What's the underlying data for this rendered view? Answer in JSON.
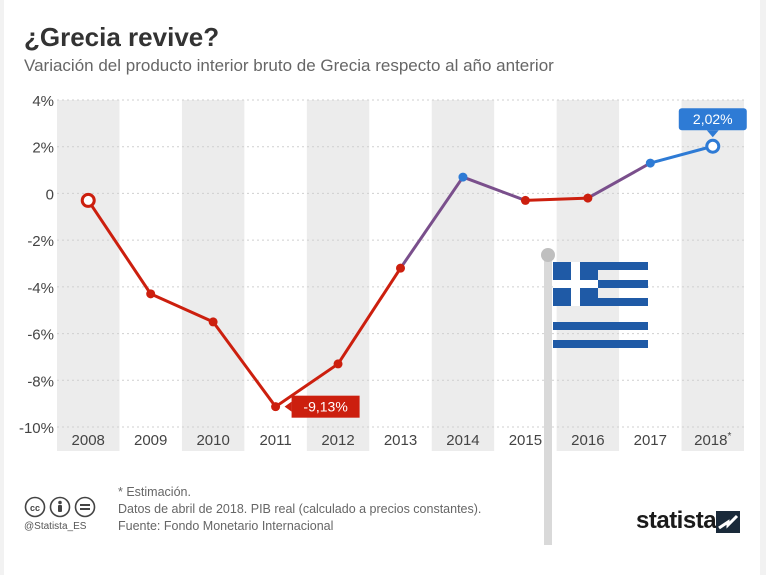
{
  "title": "¿Grecia revive?",
  "subtitle": "Variación del producto interior bruto de Grecia respecto al año anterior",
  "chart_data": {
    "type": "line",
    "title": "¿Grecia revive?",
    "subtitle": "Variación del producto interior bruto de Grecia respecto al año anterior",
    "xlabel": "",
    "ylabel": "",
    "categories": [
      "2008",
      "2009",
      "2010",
      "2011",
      "2012",
      "2013",
      "2014",
      "2015",
      "2016",
      "2017",
      "2018*"
    ],
    "values": [
      -0.3,
      -4.3,
      -5.5,
      -9.13,
      -7.3,
      -3.2,
      0.7,
      -0.3,
      -0.2,
      1.3,
      2.02
    ],
    "ylim": [
      -10,
      4
    ],
    "yticks": [
      4,
      2,
      0,
      -2,
      -4,
      -6,
      -8,
      -10
    ],
    "ytick_labels": [
      "4%",
      "2%",
      "0",
      "-2%",
      "-4%",
      "-6%",
      "-8%",
      "-10%"
    ],
    "grid": "alternating vertical bands",
    "colors": {
      "negative": "#cc1f0e",
      "positive": "#2e7bd5",
      "band": "#ececec"
    },
    "annotations": [
      {
        "category": "2011",
        "text": "-9,13%",
        "color": "#cc1f0e"
      },
      {
        "category": "2018*",
        "text": "2,02%",
        "color": "#2e7bd5"
      }
    ]
  },
  "notes": {
    "estimate": "* Estimación.",
    "data_info": "Datos de abril de 2018. PIB real (calculado a precios constantes).",
    "source": "Fuente: Fondo Monetario Internacional"
  },
  "license": {
    "handle": "@Statista_ES",
    "icons": [
      "cc-icon",
      "by-icon",
      "nd-icon"
    ]
  },
  "brand": "statista",
  "decoration": {
    "flag": "greek-flag-illustration"
  }
}
